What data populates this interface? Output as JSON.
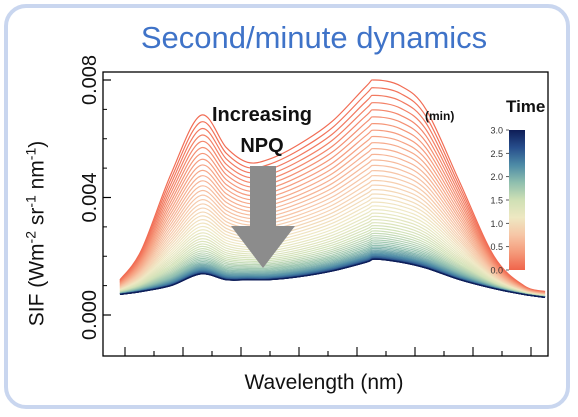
{
  "chart_data": {
    "type": "line",
    "title": "Second/minute dynamics",
    "xlabel": "Wavelength (nm)",
    "ylabel_parts": [
      "SIF (Wm",
      "-2",
      " sr",
      "-1",
      " nm",
      "-1",
      ")"
    ],
    "ylim": [
      0.0,
      0.009
    ],
    "yticks": [
      "0.000",
      "0.004",
      "0.008"
    ],
    "ytick_values": [
      0.0,
      0.004,
      0.008
    ],
    "x_range": [
      0,
      1
    ],
    "grid": false,
    "series_description": "family of SIF spectra, colour = time (min)",
    "initial_curve": {
      "x": [
        0.0,
        0.05,
        0.12,
        0.19,
        0.25,
        0.3,
        0.35,
        0.42,
        0.5,
        0.58,
        0.6,
        0.66,
        0.72,
        0.8,
        0.88,
        0.95,
        1.0
      ],
      "y": [
        0.0012,
        0.0022,
        0.0048,
        0.0068,
        0.0057,
        0.0052,
        0.0053,
        0.0058,
        0.0066,
        0.0078,
        0.008,
        0.0078,
        0.007,
        0.0045,
        0.002,
        0.001,
        0.0008
      ]
    },
    "final_curve": {
      "x": [
        0.0,
        0.05,
        0.12,
        0.19,
        0.25,
        0.3,
        0.35,
        0.42,
        0.5,
        0.58,
        0.6,
        0.66,
        0.72,
        0.8,
        0.88,
        0.95,
        1.0
      ],
      "y": [
        0.0007,
        0.0008,
        0.001,
        0.0014,
        0.0012,
        0.0012,
        0.0012,
        0.0013,
        0.0015,
        0.0018,
        0.0019,
        0.0018,
        0.0016,
        0.0012,
        0.0009,
        0.0007,
        0.0006
      ]
    },
    "n_curves": 60,
    "annotation": {
      "lines": [
        "Increasing",
        "NPQ"
      ],
      "arrow_color": "#8c8c8c"
    },
    "colorbar": {
      "title": "Time",
      "unit": "(min)",
      "range": [
        0.0,
        3.0
      ],
      "tick_labels": [
        "3.0",
        "2.5",
        "2.0",
        "1.5",
        "1.0",
        "0.5",
        "0.0"
      ],
      "colors": [
        "#f0644b",
        "#f59a7a",
        "#f6c6a6",
        "#eee8c2",
        "#cfe0b5",
        "#8fbfae",
        "#4d8ba6",
        "#274e8c",
        "#0e1d57"
      ]
    },
    "frame_color": "#c9d6ef",
    "title_color": "#3f73c8"
  }
}
